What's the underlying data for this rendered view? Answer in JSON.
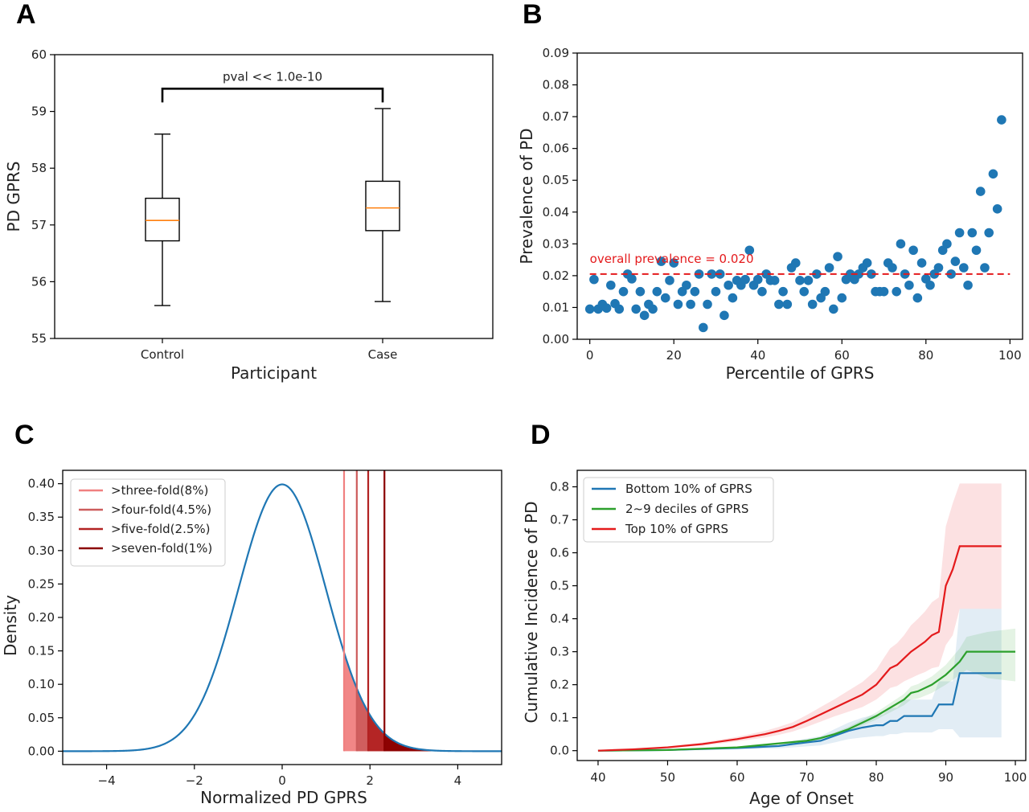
{
  "colors": {
    "blue": "#1f77b4",
    "orange": "#ff7f0e",
    "green": "#2ca02c",
    "red": "#e41a1c",
    "dashed_red": "#e41a1c"
  },
  "chart_data": [
    {
      "panel": "A",
      "type": "box",
      "xlabel": "Participant",
      "ylabel": "PD GPRS",
      "categories": [
        "Control",
        "Case"
      ],
      "ylim": [
        55,
        60
      ],
      "yticks": [
        55,
        56,
        57,
        58,
        59,
        60
      ],
      "boxes": [
        {
          "category": "Control",
          "whisker_low": 55.58,
          "q1": 56.72,
          "median": 57.08,
          "q3": 57.47,
          "whisker_high": 58.6
        },
        {
          "category": "Case",
          "whisker_low": 55.65,
          "q1": 56.9,
          "median": 57.3,
          "q3": 57.77,
          "whisker_high": 59.05
        }
      ],
      "annotation": {
        "text": "pval << 1.0e-10",
        "y": 59.4
      }
    },
    {
      "panel": "B",
      "type": "scatter",
      "xlabel": "Percentile of GPRS",
      "ylabel": "Prevalence of PD",
      "xlim": [
        -3,
        103
      ],
      "ylim": [
        0,
        0.09
      ],
      "xticks": [
        0,
        20,
        40,
        60,
        80,
        100
      ],
      "yticks": [
        0.0,
        0.01,
        0.02,
        0.03,
        0.04,
        0.05,
        0.06,
        0.07,
        0.08,
        0.09
      ],
      "hline": {
        "y": 0.0205,
        "label": "overall prevalence = 0.020"
      },
      "points": [
        [
          0,
          0.0095
        ],
        [
          1,
          0.0188
        ],
        [
          2,
          0.0095
        ],
        [
          3,
          0.011
        ],
        [
          4,
          0.0098
        ],
        [
          5,
          0.017
        ],
        [
          6,
          0.0112
        ],
        [
          7,
          0.0095
        ],
        [
          8,
          0.015
        ],
        [
          9,
          0.0205
        ],
        [
          10,
          0.019
        ],
        [
          11,
          0.0095
        ],
        [
          12,
          0.015
        ],
        [
          13,
          0.0075
        ],
        [
          14,
          0.011
        ],
        [
          15,
          0.0095
        ],
        [
          16,
          0.015
        ],
        [
          17,
          0.0245
        ],
        [
          18,
          0.013
        ],
        [
          19,
          0.0185
        ],
        [
          20,
          0.024
        ],
        [
          21,
          0.011
        ],
        [
          22,
          0.015
        ],
        [
          23,
          0.017
        ],
        [
          24,
          0.011
        ],
        [
          25,
          0.015
        ],
        [
          26,
          0.0205
        ],
        [
          27,
          0.0037
        ],
        [
          28,
          0.011
        ],
        [
          29,
          0.0205
        ],
        [
          30,
          0.015
        ],
        [
          31,
          0.0205
        ],
        [
          32,
          0.0075
        ],
        [
          33,
          0.017
        ],
        [
          34,
          0.013
        ],
        [
          35,
          0.0185
        ],
        [
          36,
          0.017
        ],
        [
          37,
          0.0188
        ],
        [
          38,
          0.028
        ],
        [
          39,
          0.017
        ],
        [
          40,
          0.0188
        ],
        [
          41,
          0.015
        ],
        [
          42,
          0.0205
        ],
        [
          43,
          0.0185
        ],
        [
          44,
          0.0185
        ],
        [
          45,
          0.011
        ],
        [
          46,
          0.015
        ],
        [
          47,
          0.011
        ],
        [
          48,
          0.0225
        ],
        [
          49,
          0.024
        ],
        [
          50,
          0.0185
        ],
        [
          51,
          0.015
        ],
        [
          52,
          0.0185
        ],
        [
          53,
          0.011
        ],
        [
          54,
          0.0205
        ],
        [
          55,
          0.013
        ],
        [
          56,
          0.015
        ],
        [
          57,
          0.0225
        ],
        [
          58,
          0.0095
        ],
        [
          59,
          0.026
        ],
        [
          60,
          0.013
        ],
        [
          61,
          0.0188
        ],
        [
          62,
          0.0205
        ],
        [
          63,
          0.0188
        ],
        [
          64,
          0.0205
        ],
        [
          65,
          0.0225
        ],
        [
          66,
          0.024
        ],
        [
          67,
          0.0205
        ],
        [
          68,
          0.015
        ],
        [
          69,
          0.015
        ],
        [
          70,
          0.015
        ],
        [
          71,
          0.024
        ],
        [
          72,
          0.0225
        ],
        [
          73,
          0.015
        ],
        [
          74,
          0.03
        ],
        [
          75,
          0.0205
        ],
        [
          76,
          0.017
        ],
        [
          77,
          0.028
        ],
        [
          78,
          0.013
        ],
        [
          79,
          0.024
        ],
        [
          80,
          0.019
        ],
        [
          81,
          0.017
        ],
        [
          82,
          0.0205
        ],
        [
          83,
          0.0225
        ],
        [
          84,
          0.028
        ],
        [
          85,
          0.03
        ],
        [
          86,
          0.0205
        ],
        [
          87,
          0.0245
        ],
        [
          88,
          0.0335
        ],
        [
          89,
          0.0225
        ],
        [
          90,
          0.017
        ],
        [
          91,
          0.0335
        ],
        [
          92,
          0.028
        ],
        [
          93,
          0.0465
        ],
        [
          94,
          0.0225
        ],
        [
          95,
          0.0335
        ],
        [
          96,
          0.052
        ],
        [
          97,
          0.041
        ],
        [
          98,
          0.069
        ]
      ]
    },
    {
      "panel": "C",
      "type": "line",
      "xlabel": "Normalized PD GPRS",
      "ylabel": "Density",
      "xlim": [
        -5,
        5
      ],
      "ylim": [
        -0.02,
        0.42
      ],
      "xticks": [
        -4,
        -2,
        0,
        2,
        4
      ],
      "yticks": [
        0.0,
        0.05,
        0.1,
        0.15,
        0.2,
        0.25,
        0.3,
        0.35,
        0.4
      ],
      "curve": "standard normal density",
      "thresholds": [
        {
          "label": ">three-fold(8%)",
          "x": 1.41,
          "color": "#f08080"
        },
        {
          "label": ">four-fold(4.5%)",
          "x": 1.7,
          "color": "#cd5c5c"
        },
        {
          "label": ">five-fold(2.5%)",
          "x": 1.96,
          "color": "#b22222"
        },
        {
          "label": ">seven-fold(1%)",
          "x": 2.33,
          "color": "#8b0000"
        }
      ]
    },
    {
      "panel": "D",
      "type": "line",
      "xlabel": "Age of Onset",
      "ylabel": "Cumulative Incidence of PD",
      "xlim": [
        37,
        101.5
      ],
      "ylim": [
        -0.03,
        0.85
      ],
      "xticks": [
        40,
        50,
        60,
        70,
        80,
        90,
        100
      ],
      "yticks": [
        0.0,
        0.1,
        0.2,
        0.3,
        0.4,
        0.5,
        0.6,
        0.7,
        0.8
      ],
      "series": [
        {
          "name": "Bottom 10% of GPRS",
          "color": "#1f77b4",
          "x": [
            40,
            50,
            60,
            62,
            64,
            66,
            68,
            70,
            72,
            74,
            76,
            78,
            80,
            81,
            82,
            83,
            84,
            85,
            86,
            87,
            88,
            89,
            90,
            91,
            92,
            93,
            94,
            95,
            96,
            97,
            98
          ],
          "y": [
            0,
            0.002,
            0.008,
            0.01,
            0.012,
            0.014,
            0.02,
            0.025,
            0.03,
            0.045,
            0.06,
            0.07,
            0.077,
            0.077,
            0.09,
            0.09,
            0.105,
            0.105,
            0.105,
            0.105,
            0.105,
            0.14,
            0.14,
            0.14,
            0.235,
            0.235,
            0.235,
            0.235,
            0.235,
            0.235,
            0.235
          ],
          "lower": [
            0,
            0,
            0.004,
            0.005,
            0.006,
            0.007,
            0.01,
            0.013,
            0.016,
            0.025,
            0.035,
            0.04,
            0.044,
            0.044,
            0.05,
            0.05,
            0.055,
            0.055,
            0.055,
            0.055,
            0.055,
            0.065,
            0.065,
            0.065,
            0.04,
            0.04,
            0.04,
            0.04,
            0.04,
            0.04,
            0.04
          ],
          "upper": [
            0,
            0.004,
            0.012,
            0.015,
            0.018,
            0.021,
            0.03,
            0.037,
            0.044,
            0.065,
            0.085,
            0.1,
            0.11,
            0.11,
            0.13,
            0.13,
            0.155,
            0.155,
            0.155,
            0.155,
            0.155,
            0.21,
            0.21,
            0.21,
            0.43,
            0.43,
            0.43,
            0.43,
            0.43,
            0.43,
            0.43
          ]
        },
        {
          "name": "2~9 deciles of GPRS",
          "color": "#2ca02c",
          "x": [
            40,
            50,
            60,
            65,
            70,
            72,
            74,
            76,
            78,
            80,
            82,
            84,
            85,
            86,
            88,
            90,
            91,
            92,
            93,
            96,
            100
          ],
          "y": [
            0,
            0.002,
            0.01,
            0.02,
            0.03,
            0.038,
            0.05,
            0.065,
            0.085,
            0.105,
            0.13,
            0.155,
            0.175,
            0.18,
            0.2,
            0.23,
            0.25,
            0.27,
            0.3,
            0.3,
            0.3
          ],
          "lower": [
            0,
            0.001,
            0.008,
            0.017,
            0.027,
            0.034,
            0.045,
            0.058,
            0.076,
            0.094,
            0.116,
            0.138,
            0.155,
            0.158,
            0.175,
            0.2,
            0.215,
            0.23,
            0.245,
            0.22,
            0.21
          ],
          "upper": [
            0,
            0.003,
            0.012,
            0.023,
            0.033,
            0.042,
            0.055,
            0.072,
            0.094,
            0.116,
            0.144,
            0.172,
            0.195,
            0.202,
            0.225,
            0.26,
            0.285,
            0.31,
            0.345,
            0.36,
            0.37
          ]
        },
        {
          "name": "Top 10% of GPRS",
          "color": "#e41a1c",
          "x": [
            40,
            45,
            50,
            55,
            60,
            64,
            66,
            68,
            70,
            72,
            74,
            76,
            78,
            80,
            81,
            82,
            83,
            84,
            85,
            86,
            87,
            88,
            89,
            90,
            91,
            92,
            94,
            96,
            98
          ],
          "y": [
            0,
            0.004,
            0.01,
            0.02,
            0.035,
            0.05,
            0.06,
            0.072,
            0.09,
            0.11,
            0.13,
            0.15,
            0.17,
            0.2,
            0.225,
            0.25,
            0.26,
            0.28,
            0.3,
            0.315,
            0.33,
            0.35,
            0.36,
            0.5,
            0.55,
            0.62,
            0.62,
            0.62,
            0.62
          ],
          "lower": [
            0,
            0.002,
            0.007,
            0.015,
            0.028,
            0.04,
            0.048,
            0.058,
            0.072,
            0.088,
            0.104,
            0.118,
            0.132,
            0.155,
            0.172,
            0.19,
            0.196,
            0.21,
            0.22,
            0.23,
            0.238,
            0.25,
            0.255,
            0.32,
            0.35,
            0.43,
            0.43,
            0.43,
            0.43
          ],
          "upper": [
            0,
            0.006,
            0.013,
            0.025,
            0.042,
            0.06,
            0.072,
            0.086,
            0.108,
            0.132,
            0.156,
            0.182,
            0.208,
            0.245,
            0.278,
            0.31,
            0.326,
            0.35,
            0.38,
            0.4,
            0.422,
            0.45,
            0.465,
            0.68,
            0.75,
            0.81,
            0.81,
            0.81,
            0.81
          ]
        }
      ]
    }
  ]
}
